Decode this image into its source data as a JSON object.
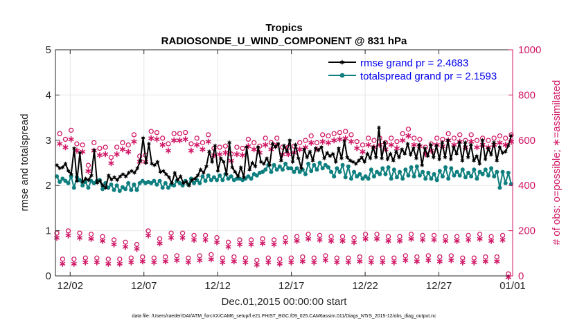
{
  "chart_data": {
    "type": "line",
    "title": "Tropics",
    "subtitle": "RADIOSONDE_U_WIND_COMPONENT @ 831 hPa",
    "xlabel": "Dec.01,2015 00:00:00 start",
    "ylabel_left": "rmse and totalspread",
    "ylabel_right": "# of obs: o=possible; ∗=assimilated",
    "footnote": "data file: /Users/raeder/DAI/ATM_forcXX/CAM6_setup/f.e21.FHIST_BGC.f09_025.CAM6assim.011/Diags_NTrS_2015-12/obs_diag_output.nc",
    "xlim": [
      0,
      31
    ],
    "ylim_left": [
      0,
      5
    ],
    "ylim_right": [
      0,
      1000
    ],
    "x_ticks": [
      1,
      6,
      11,
      16,
      21,
      26,
      31
    ],
    "x_tick_labels": [
      "12/02",
      "12/07",
      "12/12",
      "12/17",
      "12/22",
      "12/27",
      "01/01"
    ],
    "y_left_ticks": [
      0,
      1,
      2,
      3,
      4,
      5
    ],
    "y_left_tick_labels": [
      "0",
      "1",
      "2",
      "3",
      "4",
      "5"
    ],
    "y_right_ticks": [
      0,
      200,
      400,
      600,
      800,
      1000
    ],
    "y_right_tick_labels": [
      "0",
      "200",
      "400",
      "600",
      "800",
      "1000"
    ],
    "grid": true,
    "legend_position": "top-right",
    "colors": {
      "rmse": "#000000",
      "spread": "#0f7f7f",
      "obs": "#d01866",
      "legend_text": "#0000ee",
      "axis": "#262626",
      "grid": "#e6e6e6"
    },
    "series": [
      {
        "name": "rmse grand pr = 2.4683",
        "axis": "left",
        "values": [
          2.45,
          2.38,
          2.4,
          2.48,
          2.32,
          2.25,
          2.82,
          2.1,
          2.72,
          2.08,
          2.15,
          2.12,
          2.22,
          2.78,
          2.06,
          2.1,
          2.0,
          1.95,
          2.22,
          2.13,
          2.18,
          2.12,
          2.2,
          2.25,
          2.2,
          2.28,
          2.32,
          2.28,
          2.38,
          2.55,
          3.05,
          2.5,
          2.92,
          2.48,
          2.45,
          2.52,
          2.3,
          2.32,
          2.25,
          2.18,
          2.05,
          2.28,
          2.12,
          2.2,
          2.05,
          2.08,
          2.0,
          2.12,
          2.15,
          2.22,
          2.35,
          2.28,
          2.42,
          2.75,
          2.52,
          2.88,
          2.32,
          2.6,
          2.52,
          2.25,
          2.95,
          2.4,
          2.3,
          2.2,
          2.4,
          2.18,
          2.85,
          2.35,
          2.5,
          2.42,
          2.85,
          2.52,
          2.48,
          2.6,
          2.45,
          2.92,
          2.85,
          2.92,
          2.55,
          2.88,
          2.75,
          3.0,
          2.52,
          2.9,
          2.6,
          2.38,
          2.8,
          2.62,
          2.75,
          2.55,
          2.82,
          2.78,
          2.85,
          2.6,
          2.72,
          2.65,
          2.7,
          2.52,
          2.82,
          2.6,
          2.98,
          2.62,
          2.55,
          2.52,
          2.48,
          2.55,
          2.62,
          2.52,
          2.7,
          2.6,
          2.85,
          2.62,
          3.28,
          2.6,
          2.95,
          2.58,
          2.7,
          2.55,
          2.75,
          2.62,
          2.8,
          2.7,
          2.92,
          2.68,
          2.82,
          2.6,
          2.9,
          2.45,
          2.82,
          2.65,
          2.9,
          2.62,
          2.88,
          2.58,
          2.95,
          2.62,
          3.0,
          2.58,
          2.85,
          2.7,
          2.95,
          2.55,
          2.95,
          2.62,
          2.9,
          2.55,
          2.65,
          2.48,
          3.0,
          2.58,
          2.82,
          2.68,
          2.95,
          2.55,
          2.85,
          2.72,
          2.75,
          2.88,
          3.1
        ]
      },
      {
        "name": "totalspread grand pr = 2.1593",
        "axis": "left",
        "values": [
          2.2,
          2.08,
          2.15,
          2.1,
          2.05,
          2.2,
          1.95,
          2.18,
          2.12,
          2.0,
          2.08,
          1.95,
          2.1,
          2.05,
          2.1,
          2.12,
          1.92,
          2.05,
          1.95,
          2.02,
          1.9,
          2.0,
          1.88,
          1.96,
          1.92,
          2.05,
          1.9,
          2.02,
          1.9,
          2.05,
          2.1,
          2.05,
          2.08,
          2.05,
          2.1,
          2.02,
          2.1,
          1.95,
          2.05,
          1.95,
          2.02,
          2.0,
          2.1,
          2.05,
          2.0,
          2.1,
          2.02,
          2.15,
          2.05,
          2.12,
          2.05,
          2.2,
          2.1,
          2.22,
          2.12,
          2.18,
          2.12,
          2.22,
          2.12,
          2.25,
          2.15,
          2.2,
          2.12,
          2.15,
          2.15,
          2.12,
          2.15,
          2.2,
          2.15,
          2.25,
          2.22,
          2.28,
          2.3,
          2.35,
          2.45,
          2.3,
          2.45,
          2.35,
          2.42,
          2.35,
          2.48,
          2.38,
          2.38,
          2.3,
          2.38,
          2.3,
          2.35,
          2.25,
          2.48,
          2.32,
          2.45,
          2.35,
          2.5,
          2.38,
          2.45,
          2.4,
          2.3,
          2.2,
          2.38,
          2.3,
          2.45,
          2.18,
          2.42,
          2.15,
          2.3,
          2.2,
          2.25,
          2.15,
          2.2,
          2.15,
          2.35,
          2.2,
          2.3,
          2.25,
          2.38,
          2.25,
          2.4,
          2.15,
          2.35,
          2.18,
          2.3,
          2.15,
          2.35,
          2.22,
          2.4,
          2.2,
          2.42,
          2.22,
          2.3,
          2.15,
          2.28,
          2.15,
          2.25,
          2.12,
          2.32,
          2.2,
          2.4,
          2.15,
          2.38,
          2.22,
          2.3,
          2.22,
          2.35,
          2.18,
          2.28,
          2.2,
          2.35,
          2.15,
          2.3,
          2.25,
          2.35,
          2.22,
          2.38,
          2.2,
          2.3,
          1.95,
          2.3,
          2.05,
          2.28,
          2.03
        ]
      },
      {
        "name": "# of obs possible (o)",
        "axis": "right",
        "values": [
          180,
          620,
          65,
          595,
          190,
          635,
          65,
          575,
          180,
          570,
          70,
          480,
          175,
          580,
          70,
          555,
          165,
          560,
          65,
          515,
          150,
          560,
          65,
          580,
          140,
          570,
          70,
          615,
          130,
          520,
          75,
          525,
          190,
          630,
          70,
          625,
          155,
          600,
          75,
          575,
          180,
          620,
          80,
          620,
          180,
          625,
          70,
          575,
          170,
          600,
          80,
          580,
          170,
          615,
          85,
          555,
          160,
          560,
          70,
          565,
          140,
          530,
          75,
          560,
          150,
          555,
          70,
          595,
          150,
          580,
          60,
          565,
          155,
          600,
          70,
          580,
          150,
          600,
          65,
          560,
          160,
          560,
          70,
          565,
          165,
          580,
          75,
          590,
          175,
          610,
          70,
          580,
          170,
          615,
          80,
          610,
          165,
          620,
          70,
          625,
          165,
          630,
          70,
          615,
          160,
          585,
          75,
          570,
          175,
          600,
          70,
          590,
          175,
          600,
          70,
          580,
          165,
          600,
          70,
          585,
          165,
          620,
          80,
          640,
          175,
          600,
          75,
          595,
          170,
          560,
          80,
          575,
          170,
          600,
          75,
          595,
          165,
          620,
          80,
          600,
          165,
          615,
          70,
          590,
          170,
          615,
          70,
          590,
          175,
          600,
          75,
          590,
          165,
          600,
          75,
          610,
          170,
          600,
          0,
          615
        ]
      },
      {
        "name": "# of obs assimilated (∗)",
        "axis": "right",
        "values": [
          175,
          590,
          60,
          575,
          185,
          610,
          60,
          560,
          175,
          555,
          65,
          470,
          170,
          560,
          65,
          540,
          160,
          545,
          60,
          505,
          145,
          545,
          60,
          565,
          135,
          555,
          65,
          600,
          125,
          510,
          70,
          510,
          185,
          615,
          65,
          610,
          150,
          585,
          70,
          560,
          175,
          605,
          75,
          605,
          175,
          610,
          65,
          560,
          165,
          585,
          75,
          565,
          165,
          600,
          80,
          540,
          155,
          545,
          65,
          550,
          135,
          515,
          70,
          545,
          145,
          540,
          65,
          580,
          145,
          565,
          55,
          550,
          150,
          585,
          65,
          565,
          145,
          585,
          60,
          545,
          155,
          545,
          65,
          550,
          160,
          565,
          70,
          575,
          170,
          595,
          65,
          565,
          165,
          600,
          75,
          595,
          160,
          605,
          65,
          610,
          160,
          615,
          65,
          600,
          155,
          570,
          70,
          555,
          170,
          585,
          65,
          575,
          170,
          585,
          65,
          565,
          160,
          585,
          65,
          570,
          160,
          605,
          75,
          625,
          170,
          585,
          70,
          580,
          165,
          545,
          75,
          560,
          165,
          585,
          70,
          580,
          160,
          605,
          75,
          585,
          160,
          600,
          65,
          575,
          165,
          600,
          65,
          575,
          170,
          585,
          70,
          575,
          160,
          585,
          70,
          595,
          165,
          585,
          0,
          600
        ]
      }
    ]
  }
}
